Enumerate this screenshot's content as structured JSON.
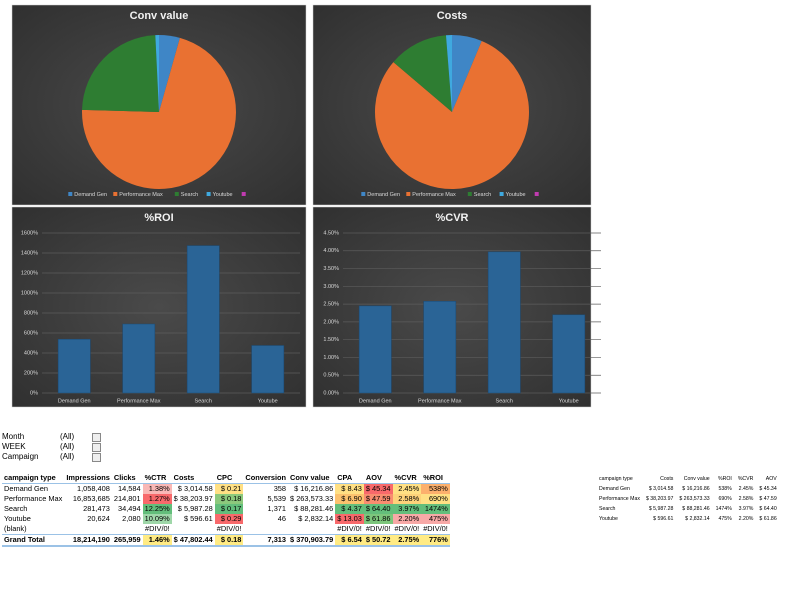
{
  "chart_data": [
    {
      "type": "pie",
      "title": "Conv value",
      "categories": [
        "Demand Gen",
        "Performance Max",
        "Search",
        "Youtube",
        null
      ],
      "values": [
        16216.86,
        263573.33,
        88281.46,
        2832.14,
        0
      ],
      "colors": [
        "#3f86c6",
        "#e97132",
        "#2e7d32",
        "#3fa9df",
        "#c03bb0"
      ]
    },
    {
      "type": "pie",
      "title": "Costs",
      "categories": [
        "Demand Gen",
        "Performance Max",
        "Search",
        "Youtube",
        null
      ],
      "values": [
        3014.58,
        38203.97,
        5987.28,
        596.61,
        0
      ],
      "colors": [
        "#3f86c6",
        "#e97132",
        "#2e7d32",
        "#3fa9df",
        "#c03bb0"
      ]
    },
    {
      "type": "bar",
      "title": "%ROI",
      "categories": [
        "Demand Gen",
        "Performance Max",
        "Search",
        "Youtube"
      ],
      "values": [
        538,
        690,
        1474,
        475
      ],
      "color": "#2a6496",
      "ylim": [
        0,
        1600
      ],
      "yticks": [
        {
          "value": 0,
          "label": "0%"
        },
        {
          "value": 200,
          "label": "200%"
        },
        {
          "value": 400,
          "label": "400%"
        },
        {
          "value": 600,
          "label": "600%"
        },
        {
          "value": 800,
          "label": "800%"
        },
        {
          "value": 1000,
          "label": "1000%"
        },
        {
          "value": 1200,
          "label": "1200%"
        },
        {
          "value": 1400,
          "label": "1400%"
        },
        {
          "value": 1600,
          "label": "1600%"
        }
      ],
      "grid": true
    },
    {
      "type": "bar",
      "title": "%CVR",
      "categories": [
        "Demand Gen",
        "Performance Max",
        "Search",
        "Youtube"
      ],
      "values": [
        2.45,
        2.58,
        3.97,
        2.2
      ],
      "color": "#2a6496",
      "ylim": [
        0,
        4.5
      ],
      "yticks": [
        {
          "value": 0,
          "label": "0.00%"
        },
        {
          "value": 0.5,
          "label": "0.50%"
        },
        {
          "value": 1,
          "label": "1.00%"
        },
        {
          "value": 1.5,
          "label": "1.50%"
        },
        {
          "value": 2,
          "label": "2.00%"
        },
        {
          "value": 2.5,
          "label": "2.50%"
        },
        {
          "value": 3,
          "label": "3.00%"
        },
        {
          "value": 3.5,
          "label": "3.50%"
        },
        {
          "value": 4,
          "label": "4.00%"
        },
        {
          "value": 4.5,
          "label": "4.50%"
        }
      ],
      "grid": true
    }
  ],
  "filters": [
    {
      "label": "Month",
      "value": "(All)"
    },
    {
      "label": "WEEK",
      "value": "(All)"
    },
    {
      "label": "Campaign",
      "value": "(All)"
    }
  ],
  "pivot": {
    "header": [
      "campaign type",
      "Impressions",
      "Clicks",
      "%CTR",
      "Costs",
      "CPC",
      "Conversion",
      "Conv value",
      "CPA",
      "AOV",
      "%CVR",
      "%ROI"
    ],
    "rows": [
      [
        "Demand Gen",
        "1,058,408",
        "14,584",
        "1.38%",
        "$ 3,014.58",
        "$ 0.21",
        "358",
        "$ 16,216.86",
        "$ 8.43",
        "$ 45.34",
        "2.45%",
        "538%"
      ],
      [
        "Performance Max",
        "16,853,685",
        "214,801",
        "1.27%",
        "$ 38,203.97",
        "$ 0.18",
        "5,539",
        "$ 263,573.33",
        "$ 6.90",
        "$ 47.59",
        "2.58%",
        "690%"
      ],
      [
        "Search",
        "281,473",
        "34,494",
        "12.25%",
        "$ 5,987.28",
        "$ 0.17",
        "1,371",
        "$ 88,281.46",
        "$ 4.37",
        "$ 64.40",
        "3.97%",
        "1474%"
      ],
      [
        "Youtube",
        "20,624",
        "2,080",
        "10.09%",
        "$ 596.61",
        "$ 0.29",
        "46",
        "$ 2,832.14",
        "$ 13.03",
        "$ 61.86",
        "2.20%",
        "475%"
      ],
      [
        "(blank)",
        null,
        null,
        "#DIV/0!",
        null,
        "#DIV/0!",
        null,
        null,
        "#DIV/0!",
        "#DIV/0!",
        "#DIV/0!",
        "#DIV/0!"
      ],
      [
        "Grand Total",
        "18,214,190",
        "265,959",
        "1.46%",
        "$ 47,802.44",
        "$ 0.18",
        "7,313",
        "$ 370,903.79",
        "$ 6.54",
        "$ 50.72",
        "2.75%",
        "776%"
      ]
    ]
  },
  "summary": {
    "header": [
      "campaign type",
      "Costs",
      "Conv value",
      "%ROI",
      "%CVR",
      "AOV"
    ],
    "rows": [
      [
        "Demand Gen",
        "$ 3,014.58",
        "$ 16,216.86",
        "538%",
        "2.45%",
        "$ 45.34"
      ],
      [
        "Performance Max",
        "$ 38,203.97",
        "$ 263,573.33",
        "690%",
        "2.58%",
        "$ 47.59"
      ],
      [
        "Search",
        "$ 5,987.28",
        "$ 88,281.46",
        "1474%",
        "3.97%",
        "$ 64.40"
      ],
      [
        "Youtube",
        "$ 596.61",
        "$ 2,832.14",
        "475%",
        "2.20%",
        "$ 61.86"
      ]
    ]
  }
}
